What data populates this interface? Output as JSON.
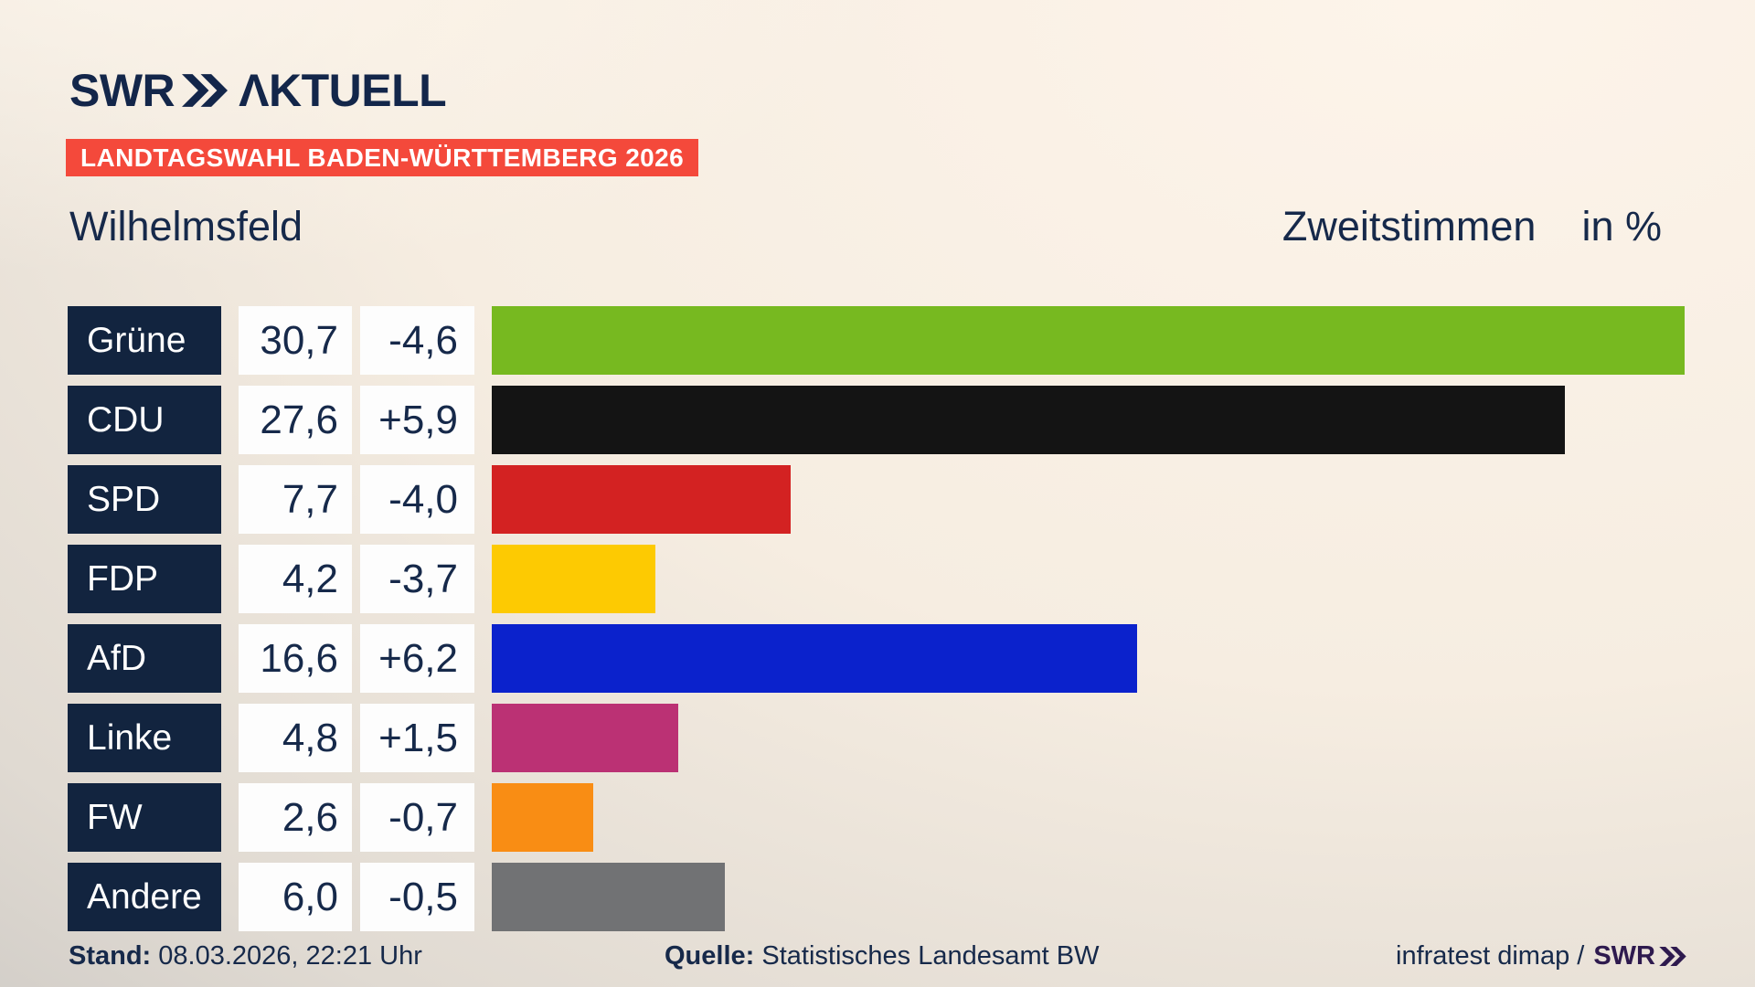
{
  "header": {
    "logo": {
      "swr": "SWR",
      "aktuell": "ΛKTUELL"
    },
    "banner": "LANDTAGSWAHL BADEN-WÜRTTEMBERG 2026"
  },
  "subheader": {
    "region": "Wilhelmsfeld",
    "measure": "Zweitstimmen",
    "unit": "in %"
  },
  "chart_data": {
    "type": "bar",
    "orientation": "horizontal",
    "title": "Wilhelmsfeld",
    "subtitle": "Zweitstimmen in %",
    "xlim": [
      0,
      32.5
    ],
    "grid": false,
    "legend": false,
    "categories": [
      "Grüne",
      "CDU",
      "SPD",
      "FDP",
      "AfD",
      "Linke",
      "FW",
      "Andere"
    ],
    "values": [
      30.7,
      27.6,
      7.7,
      4.2,
      16.6,
      4.8,
      2.6,
      6.0
    ],
    "value_labels": [
      "30,7",
      "27,6",
      "7,7",
      "4,2",
      "16,6",
      "4,8",
      "2,6",
      "6,0"
    ],
    "diff_labels": [
      "-4,6",
      "+5,9",
      "-4,0",
      "-3,7",
      "+6,2",
      "+1,5",
      "-0,7",
      "-0,5"
    ],
    "bar_colors": [
      "#77b920",
      "#141414",
      "#d32222",
      "#fdca02",
      "#0b22cc",
      "#bb3174",
      "#f98d14",
      "#717274"
    ]
  },
  "footer": {
    "stand_label": "Stand:",
    "stand_value": "08.03.2026, 22:21 Uhr",
    "source_label": "Quelle:",
    "source_value": "Statistisches Landesamt BW",
    "credit_text": "infratest dimap /",
    "credit_logo": "SWR"
  },
  "colors": {
    "navy_text": "#16294a",
    "label_cell_bg": "#12243f",
    "banner_bg": "#f4493b",
    "cell_bg": "#fdfdfd",
    "credit_logo_color": "#2e1a4e"
  }
}
